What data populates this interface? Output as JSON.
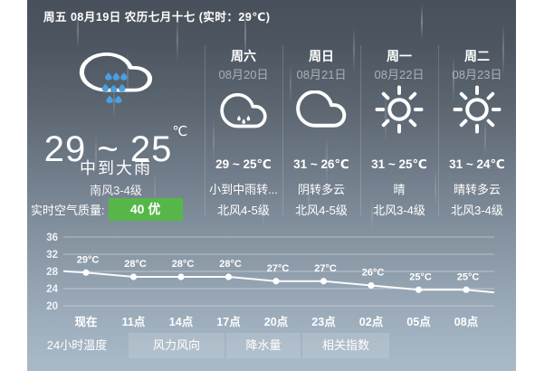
{
  "header": {
    "title": "周五 08月19日 农历七月十七 (实时：29℃)"
  },
  "current": {
    "icon": "heavy-rain",
    "temp_range": "29 ~ 25",
    "temp_unit": "℃",
    "condition": "中到大雨",
    "wind": "南风3-4级",
    "air_quality": {
      "label": "实时空气质量:",
      "value": "40 优",
      "color": "#56b748"
    }
  },
  "forecast": [
    {
      "day": "周六",
      "date": "08月20日",
      "icon": "rain",
      "temp": "29 ~ 25℃",
      "condition": "小到中雨转...",
      "wind": "北风4-5级"
    },
    {
      "day": "周日",
      "date": "08月21日",
      "icon": "cloudy",
      "temp": "31 ~ 26℃",
      "condition": "阴转多云",
      "wind": "北风4-5级"
    },
    {
      "day": "周一",
      "date": "08月22日",
      "icon": "sunny",
      "temp": "31 ~ 25℃",
      "condition": "晴",
      "wind": "北风3-4级"
    },
    {
      "day": "周二",
      "date": "08月23日",
      "icon": "sunny",
      "temp": "31 ~ 24℃",
      "condition": "晴转多云",
      "wind": "北风3-4级"
    }
  ],
  "chart_data": {
    "type": "line",
    "x": [
      "现在",
      "11点",
      "14点",
      "17点",
      "20点",
      "23点",
      "02点",
      "05点",
      "08点"
    ],
    "values": [
      29,
      28,
      28,
      28,
      27,
      27,
      26,
      25,
      25
    ],
    "point_labels": [
      "29°C",
      "28°C",
      "28°C",
      "28°C",
      "27°C",
      "27°C",
      "26°C",
      "25°C",
      "25°C"
    ],
    "yticks": [
      20,
      24,
      28,
      32,
      36
    ],
    "ylim": [
      18,
      38
    ],
    "grid": true,
    "line_color": "#ffffff"
  },
  "tabs": [
    {
      "label": "24小时温度",
      "active": true
    },
    {
      "label": "风力风向",
      "active": false
    },
    {
      "label": "降水量",
      "active": false
    },
    {
      "label": "相关指数",
      "active": false
    }
  ]
}
